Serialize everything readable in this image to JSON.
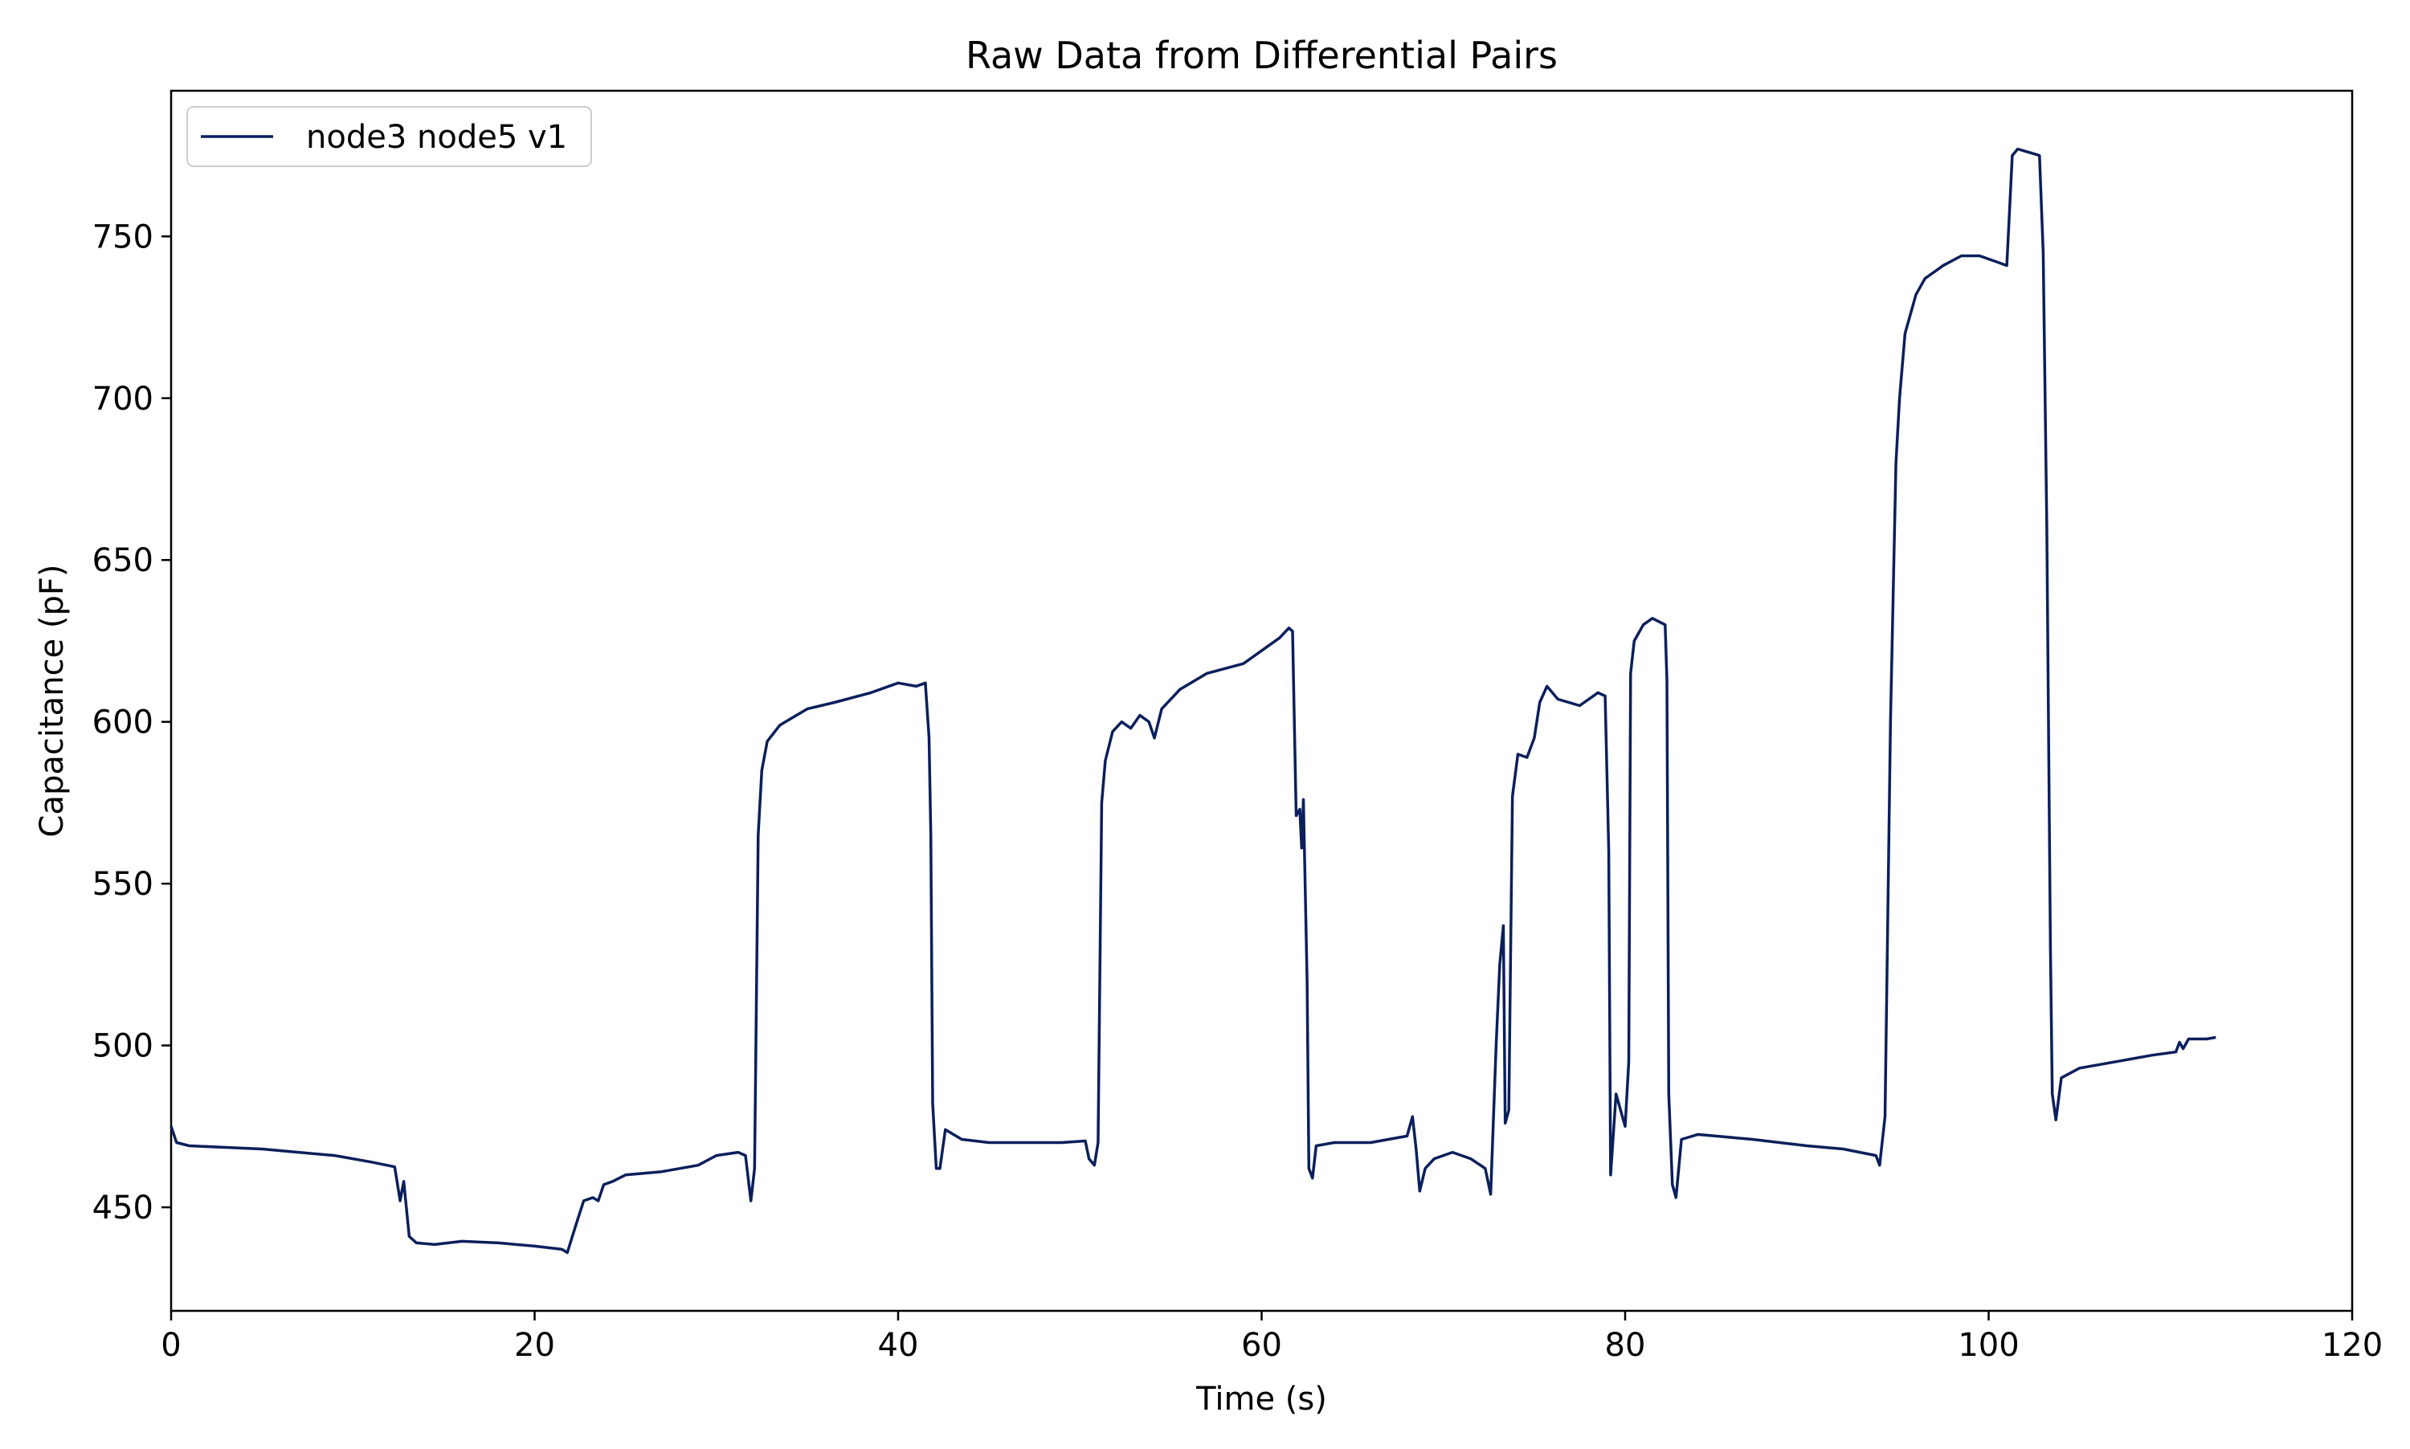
{
  "chart_data": {
    "type": "line",
    "title": "Raw Data from Differential Pairs",
    "xlabel": "Time (s)",
    "ylabel": "Capacitance (pF)",
    "xlim": [
      0,
      120
    ],
    "ylim": [
      418,
      795
    ],
    "xticks": [
      0,
      20,
      40,
      60,
      80,
      100,
      120
    ],
    "yticks": [
      450,
      500,
      550,
      600,
      650,
      700,
      750
    ],
    "grid": false,
    "legend_position": "top-left",
    "series": [
      {
        "name": "node3 node5 v1",
        "color": "#0b1f5c",
        "points": [
          [
            0,
            475
          ],
          [
            0.3,
            470
          ],
          [
            1,
            469
          ],
          [
            3,
            468.5
          ],
          [
            5,
            468
          ],
          [
            7,
            467
          ],
          [
            9,
            466
          ],
          [
            11,
            464
          ],
          [
            12.3,
            462.5
          ],
          [
            12.6,
            452
          ],
          [
            12.8,
            458
          ],
          [
            13.1,
            441
          ],
          [
            13.5,
            439
          ],
          [
            14.5,
            438.5
          ],
          [
            16,
            439.5
          ],
          [
            18,
            439
          ],
          [
            20,
            438
          ],
          [
            21.5,
            437
          ],
          [
            21.8,
            436
          ],
          [
            22.3,
            445
          ],
          [
            22.7,
            452
          ],
          [
            23.2,
            453
          ],
          [
            23.5,
            452
          ],
          [
            23.8,
            457
          ],
          [
            24.3,
            458
          ],
          [
            25,
            460
          ],
          [
            27,
            461
          ],
          [
            29,
            463
          ],
          [
            30,
            466
          ],
          [
            31.2,
            467
          ],
          [
            31.6,
            466
          ],
          [
            31.9,
            452
          ],
          [
            32.1,
            462
          ],
          [
            32.3,
            565
          ],
          [
            32.5,
            585
          ],
          [
            32.8,
            594
          ],
          [
            33.5,
            599
          ],
          [
            35,
            604
          ],
          [
            36.5,
            606
          ],
          [
            38.5,
            609
          ],
          [
            40,
            612
          ],
          [
            41,
            611
          ],
          [
            41.5,
            612
          ],
          [
            41.7,
            595
          ],
          [
            41.8,
            565
          ],
          [
            41.9,
            482
          ],
          [
            42.1,
            462
          ],
          [
            42.3,
            462
          ],
          [
            42.6,
            474
          ],
          [
            43.5,
            471
          ],
          [
            45,
            470
          ],
          [
            47,
            470
          ],
          [
            49,
            470
          ],
          [
            50.3,
            470.5
          ],
          [
            50.5,
            465
          ],
          [
            50.8,
            463
          ],
          [
            51,
            470
          ],
          [
            51.2,
            575
          ],
          [
            51.4,
            588
          ],
          [
            51.8,
            597
          ],
          [
            52.3,
            600
          ],
          [
            52.8,
            598
          ],
          [
            53.3,
            602
          ],
          [
            53.8,
            600
          ],
          [
            54.1,
            595
          ],
          [
            54.5,
            604
          ],
          [
            55.5,
            610
          ],
          [
            57,
            615
          ],
          [
            59,
            618
          ],
          [
            61,
            626
          ],
          [
            61.5,
            629
          ],
          [
            61.7,
            628
          ],
          [
            61.9,
            571
          ],
          [
            62.1,
            573
          ],
          [
            62.2,
            561
          ],
          [
            62.3,
            576
          ],
          [
            62.5,
            520
          ],
          [
            62.6,
            462
          ],
          [
            62.8,
            459
          ],
          [
            63,
            469
          ],
          [
            64,
            470
          ],
          [
            66,
            470
          ],
          [
            67.5,
            471.5
          ],
          [
            68,
            472
          ],
          [
            68.3,
            478
          ],
          [
            68.5,
            468
          ],
          [
            68.7,
            455
          ],
          [
            69,
            462
          ],
          [
            69.5,
            465
          ],
          [
            70.5,
            467
          ],
          [
            71.5,
            465
          ],
          [
            72.3,
            462
          ],
          [
            72.6,
            454
          ],
          [
            72.9,
            500
          ],
          [
            73.1,
            525
          ],
          [
            73.3,
            537
          ],
          [
            73.4,
            476
          ],
          [
            73.6,
            480
          ],
          [
            73.8,
            577
          ],
          [
            74.1,
            590
          ],
          [
            74.6,
            589
          ],
          [
            75,
            595
          ],
          [
            75.3,
            606
          ],
          [
            75.7,
            611
          ],
          [
            76.3,
            607
          ],
          [
            77.5,
            605
          ],
          [
            78.5,
            609
          ],
          [
            78.9,
            608
          ],
          [
            79.1,
            560
          ],
          [
            79.2,
            460
          ],
          [
            79.5,
            485
          ],
          [
            80,
            475
          ],
          [
            80.2,
            495
          ],
          [
            80.3,
            615
          ],
          [
            80.5,
            625
          ],
          [
            81,
            630
          ],
          [
            81.5,
            632
          ],
          [
            82.2,
            630
          ],
          [
            82.3,
            613
          ],
          [
            82.4,
            485
          ],
          [
            82.6,
            457
          ],
          [
            82.8,
            453
          ],
          [
            83.1,
            471
          ],
          [
            84,
            472.5
          ],
          [
            85,
            472
          ],
          [
            87,
            471
          ],
          [
            90,
            469
          ],
          [
            92,
            468
          ],
          [
            93.8,
            466
          ],
          [
            94,
            463
          ],
          [
            94.3,
            478
          ],
          [
            94.6,
            600
          ],
          [
            94.9,
            680
          ],
          [
            95.1,
            700
          ],
          [
            95.4,
            720
          ],
          [
            96,
            732
          ],
          [
            96.5,
            737
          ],
          [
            97.5,
            741
          ],
          [
            98.5,
            744
          ],
          [
            99.5,
            744
          ],
          [
            100.5,
            742
          ],
          [
            101,
            741
          ],
          [
            101.3,
            775
          ],
          [
            101.6,
            777
          ],
          [
            102.2,
            776
          ],
          [
            102.8,
            775
          ],
          [
            103,
            745
          ],
          [
            103.2,
            660
          ],
          [
            103.4,
            530
          ],
          [
            103.5,
            485
          ],
          [
            103.7,
            477
          ],
          [
            104,
            490
          ],
          [
            105,
            493
          ],
          [
            107,
            495
          ],
          [
            109,
            497
          ],
          [
            110.3,
            498
          ],
          [
            110.5,
            501
          ],
          [
            110.7,
            499
          ],
          [
            111,
            502
          ],
          [
            112,
            502
          ],
          [
            112.5,
            502.5
          ]
        ]
      }
    ]
  }
}
